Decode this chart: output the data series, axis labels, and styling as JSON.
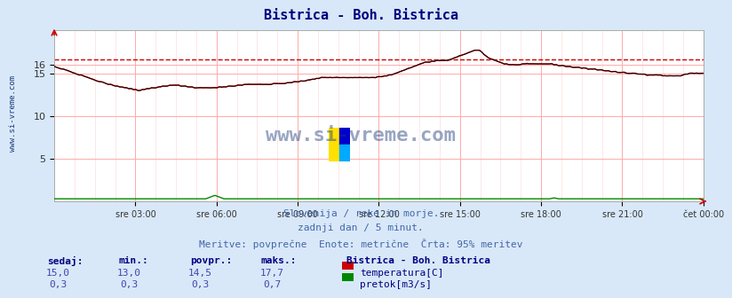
{
  "title": "Bistrica - Boh. Bistrica",
  "title_color": "#000080",
  "bg_color": "#d8e8f8",
  "plot_bg_color": "#ffffff",
  "grid_color_major": "#ffaaaa",
  "grid_color_minor": "#ffdddd",
  "x_ticks": [
    "sre 03:00",
    "sre 06:00",
    "sre 09:00",
    "sre 12:00",
    "sre 15:00",
    "sre 18:00",
    "sre 21:00",
    "čet 00:00"
  ],
  "ylim": [
    0,
    20
  ],
  "temp_color": "#cc0000",
  "flow_color": "#008800",
  "black_line_color": "#000000",
  "watermark_color": "#1a3a7a",
  "footer_line1": "Slovenija / reke in morje.",
  "footer_line2": "zadnji dan / 5 minut.",
  "footer_line3": "Meritve: povprečne  Enote: metrične  Črta: 95% meritev",
  "footer_color": "#4466aa",
  "table_label_color": "#000080",
  "table_value_color": "#4444aa",
  "sidebar_text": "www.si-vreme.com",
  "sidebar_color": "#1a3a7a",
  "legend_station": "Bistrica - Boh. Bistrica",
  "legend_temp_label": "temperatura[C]",
  "legend_flow_label": "pretok[m3/s]",
  "sedaj_label": "sedaj:",
  "min_label": "min.:",
  "povpr_label": "povpr.:",
  "maks_label": "maks.:",
  "temp_sedaj": "15,0",
  "temp_min": "13,0",
  "temp_povpr": "14,5",
  "temp_maks": "17,7",
  "flow_sedaj": "0,3",
  "flow_min": "0,3",
  "flow_povpr": "0,3",
  "flow_maks": "0,7",
  "dashed_line_value": 16.6,
  "dashed_line_color": "#cc0000"
}
